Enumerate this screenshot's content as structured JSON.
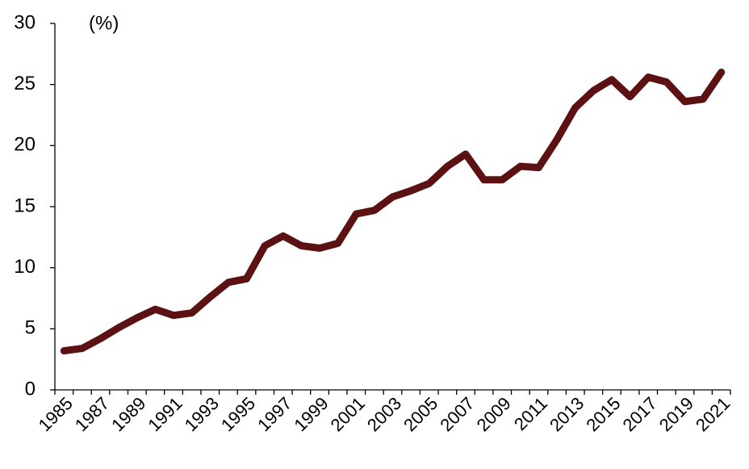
{
  "chart_data": {
    "type": "line",
    "unit_label": "(%)",
    "categories": [
      "1985",
      null,
      "1987",
      null,
      "1989",
      null,
      "1991",
      null,
      "1993",
      null,
      "1995",
      null,
      "1997",
      null,
      "1999",
      null,
      "2001",
      null,
      "2003",
      null,
      "2005",
      null,
      "2007",
      null,
      "2009",
      null,
      "2011",
      null,
      "2013",
      null,
      "2015",
      null,
      "2017",
      null,
      "2019",
      null,
      "2021"
    ],
    "series": [
      {
        "color": "#5c1212",
        "values": [
          3.2,
          3.4,
          4.2,
          5.1,
          5.9,
          6.6,
          6.1,
          6.3,
          7.6,
          8.8,
          9.1,
          11.8,
          12.6,
          11.8,
          11.6,
          12.0,
          14.4,
          14.7,
          15.8,
          16.3,
          16.9,
          18.3,
          19.3,
          17.2,
          17.2,
          18.3,
          18.2,
          20.5,
          23.1,
          24.5,
          25.4,
          24.0,
          25.6,
          25.2,
          23.6,
          23.8,
          26.0
        ]
      }
    ],
    "ylim": [
      0,
      30
    ],
    "yticks": [
      0,
      5,
      10,
      15,
      20,
      25,
      30
    ],
    "grid": false
  }
}
